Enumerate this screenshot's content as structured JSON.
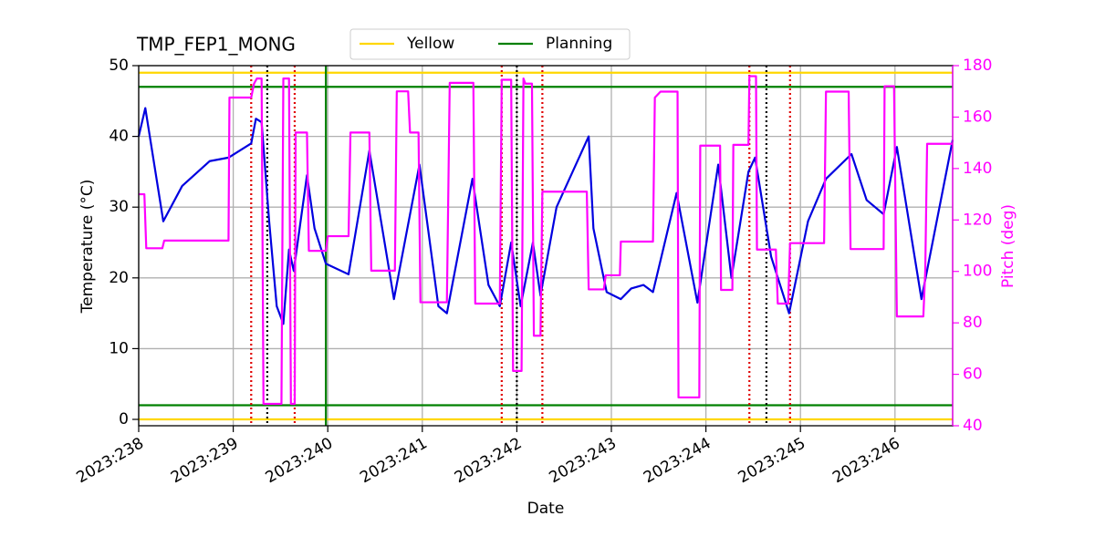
{
  "chart_data": {
    "type": "line",
    "title": "TMP_FEP1_MONG",
    "xlabel": "Date",
    "ylabel": "Temperature (°C)",
    "y2label": "Pitch (deg)",
    "xlim": [
      238,
      246.61
    ],
    "ylim": [
      -0.9,
      50
    ],
    "y2lim": [
      40,
      180
    ],
    "xticks": [
      {
        "value": 238,
        "label": "2023:238"
      },
      {
        "value": 239,
        "label": "2023:239"
      },
      {
        "value": 240,
        "label": "2023:240"
      },
      {
        "value": 241,
        "label": "2023:241"
      },
      {
        "value": 242,
        "label": "2023:242"
      },
      {
        "value": 243,
        "label": "2023:243"
      },
      {
        "value": 244,
        "label": "2023:244"
      },
      {
        "value": 245,
        "label": "2023:245"
      },
      {
        "value": 246,
        "label": "2023:246"
      }
    ],
    "yticks": [
      0,
      10,
      20,
      30,
      40,
      50
    ],
    "y2ticks": [
      40,
      60,
      80,
      100,
      120,
      140,
      160,
      180
    ],
    "grid": true,
    "legend": "top-center",
    "limit_lines": [
      {
        "name": "Yellow",
        "color": "#ffd700",
        "values": [
          49,
          0
        ]
      },
      {
        "name": "Planning",
        "color": "#008000",
        "values": [
          47,
          2
        ]
      }
    ],
    "vertical_lines": [
      {
        "color": "#008000",
        "dash": "solid",
        "x": [
          239.98
        ]
      },
      {
        "color": "#e00000",
        "dash": "dotted",
        "x": [
          239.19,
          239.65,
          241.84,
          242.27,
          244.46,
          244.89
        ]
      },
      {
        "color": "#000000",
        "dash": "dotted",
        "x": [
          239.36,
          242.0,
          244.64
        ]
      }
    ],
    "series": [
      {
        "color": "#0000e0",
        "x": [
          238.0,
          238.07,
          238.26,
          238.46,
          238.75,
          238.95,
          239.19,
          239.24,
          239.3,
          239.38,
          239.46,
          239.53,
          239.59,
          239.64,
          239.78,
          239.86,
          239.98,
          240.22,
          240.44,
          240.7,
          240.97,
          241.17,
          241.26,
          241.53,
          241.7,
          241.82,
          241.94,
          242.04,
          242.17,
          242.25,
          242.42,
          242.76,
          242.81,
          242.95,
          243.1,
          243.21,
          243.34,
          243.44,
          243.69,
          243.91,
          244.13,
          244.27,
          244.45,
          244.52,
          244.69,
          244.88,
          245.08,
          245.27,
          245.54,
          245.7,
          245.88,
          246.02,
          246.28,
          246.61
        ],
        "values": [
          40,
          44,
          28,
          33,
          36.5,
          37,
          39,
          42.5,
          42,
          28,
          16,
          13.5,
          24,
          21,
          34.5,
          27,
          22,
          20.5,
          38,
          17,
          36,
          16,
          15,
          34,
          19,
          16,
          25,
          16,
          25,
          17.5,
          30,
          40,
          27,
          18,
          17,
          18.5,
          19,
          18,
          32,
          16.5,
          36,
          20,
          35,
          37,
          23,
          15,
          28,
          34,
          37.5,
          31,
          29,
          38.5,
          17,
          39.5
        ]
      },
      {
        "color": "#ff00ff",
        "axis": "y2",
        "x": [
          238.0,
          238.06,
          238.08,
          238.25,
          238.27,
          238.95,
          238.96,
          239.19,
          239.22,
          239.25,
          239.3,
          239.32,
          239.51,
          239.53,
          239.59,
          239.61,
          239.65,
          239.66,
          239.78,
          239.8,
          239.98,
          240.0,
          240.22,
          240.24,
          240.44,
          240.46,
          240.71,
          240.73,
          240.85,
          240.87,
          240.96,
          240.98,
          241.26,
          241.29,
          241.54,
          241.56,
          241.82,
          241.84,
          241.94,
          241.96,
          242.05,
          242.07,
          242.09,
          242.16,
          242.18,
          242.25,
          242.27,
          242.74,
          242.76,
          242.92,
          242.94,
          243.09,
          243.1,
          243.44,
          243.46,
          243.52,
          243.7,
          243.71,
          243.93,
          243.94,
          244.15,
          244.16,
          244.28,
          244.29,
          244.45,
          244.46,
          244.53,
          244.54,
          244.74,
          244.76,
          244.87,
          244.89,
          245.25,
          245.27,
          245.51,
          245.53,
          245.88,
          245.89,
          245.99,
          246.02,
          246.3,
          246.32,
          246.34,
          246.61
        ],
        "values": [
          130,
          130,
          109,
          109,
          112,
          112,
          167.6,
          167.6,
          173,
          175,
          175,
          48.5,
          48.5,
          175,
          175,
          48.5,
          48.5,
          154,
          154,
          108,
          108,
          113.7,
          113.7,
          154,
          154,
          100.3,
          100.3,
          170,
          170,
          154,
          154,
          88,
          88,
          173.3,
          173.3,
          87.5,
          87.5,
          174.5,
          174.5,
          61.3,
          61.3,
          175,
          173,
          173,
          75,
          75,
          131,
          131,
          93,
          93,
          98.5,
          98.5,
          111.6,
          111.6,
          167.6,
          169.9,
          169.9,
          51,
          51,
          148.9,
          148.9,
          92.8,
          92.8,
          149.2,
          149.2,
          175.9,
          175.9,
          108.5,
          108.5,
          87.5,
          87.5,
          111,
          111,
          169.9,
          169.9,
          108.7,
          108.7,
          172,
          172,
          82.5,
          82.5,
          100,
          149.6,
          149.6
        ]
      }
    ]
  }
}
